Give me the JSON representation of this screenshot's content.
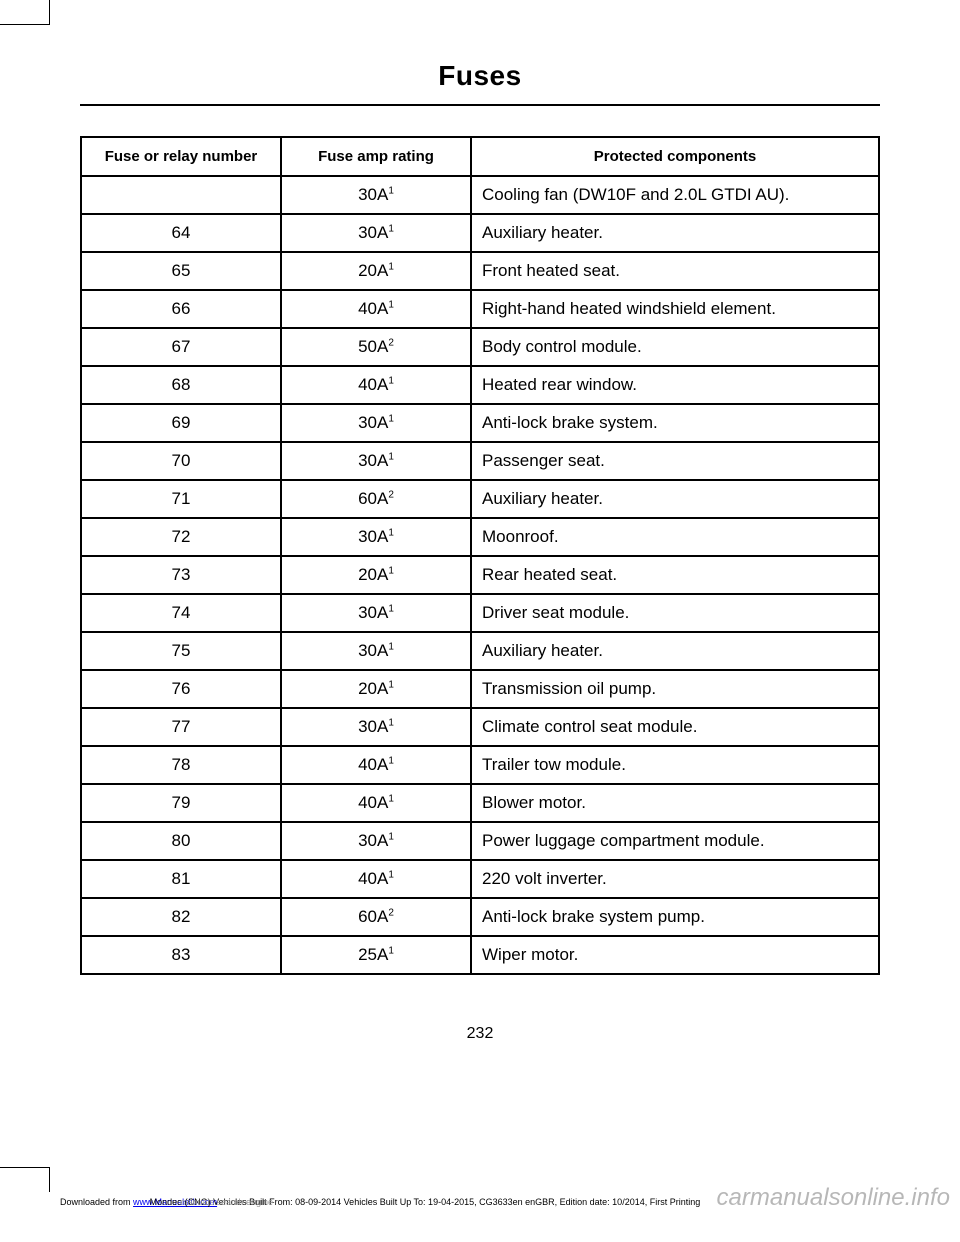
{
  "page": {
    "title": "Fuses",
    "page_number": "232"
  },
  "table": {
    "columns": [
      "Fuse or relay number",
      "Fuse amp rating",
      "Protected components"
    ],
    "rows": [
      {
        "num": "",
        "amp": "30A",
        "sup": "1",
        "comp": "Cooling fan (DW10F and 2.0L GTDI AU)."
      },
      {
        "num": "64",
        "amp": "30A",
        "sup": "1",
        "comp": "Auxiliary heater."
      },
      {
        "num": "65",
        "amp": "20A",
        "sup": "1",
        "comp": "Front heated seat."
      },
      {
        "num": "66",
        "amp": "40A",
        "sup": "1",
        "comp": "Right-hand heated windshield element."
      },
      {
        "num": "67",
        "amp": "50A",
        "sup": "2",
        "comp": "Body control module."
      },
      {
        "num": "68",
        "amp": "40A",
        "sup": "1",
        "comp": "Heated rear window."
      },
      {
        "num": "69",
        "amp": "30A",
        "sup": "1",
        "comp": "Anti-lock brake system."
      },
      {
        "num": "70",
        "amp": "30A",
        "sup": "1",
        "comp": "Passenger seat."
      },
      {
        "num": "71",
        "amp": "60A",
        "sup": "2",
        "comp": "Auxiliary heater."
      },
      {
        "num": "72",
        "amp": "30A",
        "sup": "1",
        "comp": "Moonroof."
      },
      {
        "num": "73",
        "amp": "20A",
        "sup": "1",
        "comp": "Rear heated seat."
      },
      {
        "num": "74",
        "amp": "30A",
        "sup": "1",
        "comp": "Driver seat module."
      },
      {
        "num": "75",
        "amp": "30A",
        "sup": "1",
        "comp": "Auxiliary heater."
      },
      {
        "num": "76",
        "amp": "20A",
        "sup": "1",
        "comp": "Transmission oil pump."
      },
      {
        "num": "77",
        "amp": "30A",
        "sup": "1",
        "comp": "Climate control seat module."
      },
      {
        "num": "78",
        "amp": "40A",
        "sup": "1",
        "comp": "Trailer tow module."
      },
      {
        "num": "79",
        "amp": "40A",
        "sup": "1",
        "comp": "Blower motor."
      },
      {
        "num": "80",
        "amp": "30A",
        "sup": "1",
        "comp": "Power luggage compartment module."
      },
      {
        "num": "81",
        "amp": "40A",
        "sup": "1",
        "comp": "220 volt inverter."
      },
      {
        "num": "82",
        "amp": "60A",
        "sup": "2",
        "comp": "Anti-lock brake system pump."
      },
      {
        "num": "83",
        "amp": "25A",
        "sup": "1",
        "comp": "Wiper motor."
      }
    ]
  },
  "footer": {
    "downloaded_prefix": "Downloaded from ",
    "link": "www.Manualslib.com",
    "mondeo": "Mondeo (CNG) Vehicles Built From: 08-09-2014 Vehicles Built Up To: 19-04-2015, CG3633en enGBR, Edition date: 10/2014, First Printing",
    "ghost": " manuals search engine",
    "watermark": "carmanualsonline.info"
  }
}
